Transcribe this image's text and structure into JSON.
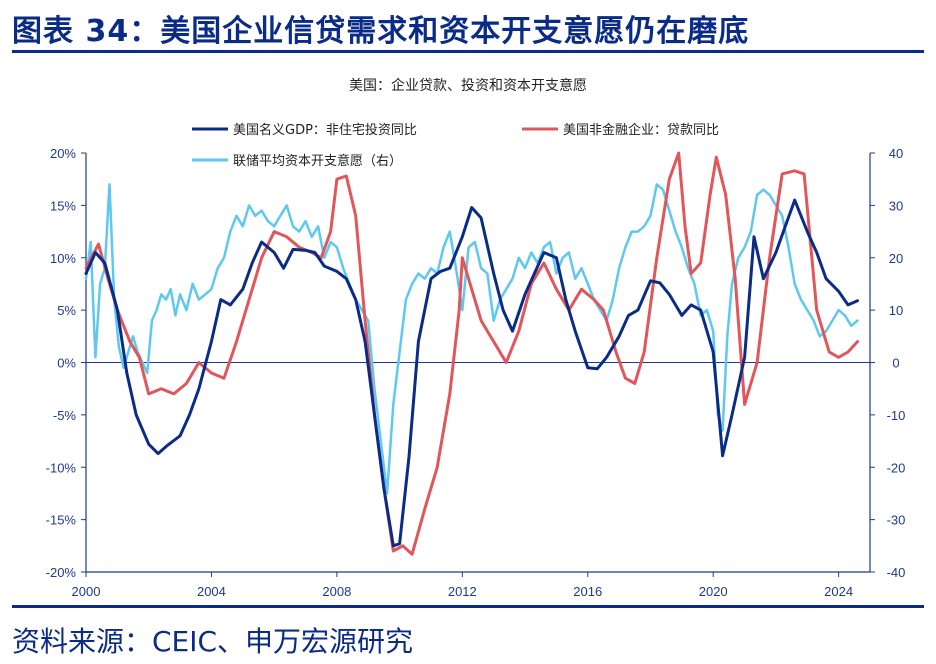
{
  "figure": {
    "title": "图表 34：美国企业信贷需求和资本开支意愿仍在磨底",
    "source": "资料来源：CEIC、申万宏源研究"
  },
  "colors": {
    "title": "#0b2c86",
    "axis": "#1f3a8a",
    "series_gdp": "#0b2c86",
    "series_loan": "#e0565b",
    "series_capex": "#5fc8ee"
  },
  "chart_data": {
    "type": "line",
    "title": "美国：企业贷款、投资和资本开支意愿",
    "xlim": [
      2000,
      2025
    ],
    "ylim_left": [
      -20,
      20
    ],
    "ylim_right": [
      -40,
      40
    ],
    "x_ticks": [
      "2000",
      "2004",
      "2008",
      "2012",
      "2016",
      "2020",
      "2024"
    ],
    "y_left_ticks": [
      "20%",
      "15%",
      "10%",
      "5%",
      "0%",
      "-5%",
      "-10%",
      "-15%",
      "-20%"
    ],
    "y_right_ticks": [
      "40",
      "30",
      "20",
      "10",
      "0",
      "-10",
      "-20",
      "-30",
      "-40"
    ],
    "legend_position": "top",
    "series": [
      {
        "name": "美国名义GDP：非住宅投资同比",
        "axis": "left",
        "x": [
          2000.0,
          2000.3,
          2000.6,
          2001.0,
          2001.3,
          2001.6,
          2002.0,
          2002.3,
          2002.6,
          2003.0,
          2003.3,
          2003.6,
          2004.0,
          2004.3,
          2004.6,
          2005.0,
          2005.3,
          2005.6,
          2006.0,
          2006.3,
          2006.6,
          2007.0,
          2007.3,
          2007.6,
          2008.0,
          2008.3,
          2008.6,
          2008.9,
          2009.2,
          2009.5,
          2009.8,
          2010.0,
          2010.3,
          2010.6,
          2011.0,
          2011.3,
          2011.6,
          2012.0,
          2012.3,
          2012.6,
          2013.0,
          2013.3,
          2013.6,
          2014.0,
          2014.3,
          2014.6,
          2015.0,
          2015.3,
          2015.6,
          2016.0,
          2016.3,
          2016.6,
          2017.0,
          2017.3,
          2017.6,
          2018.0,
          2018.3,
          2018.6,
          2019.0,
          2019.3,
          2019.6,
          2020.0,
          2020.3,
          2020.6,
          2021.0,
          2021.3,
          2021.6,
          2022.0,
          2022.3,
          2022.6,
          2023.0,
          2023.3,
          2023.6,
          2024.0,
          2024.3,
          2024.6
        ],
        "values": [
          8.5,
          10.5,
          9.5,
          5.0,
          -1.0,
          -5.0,
          -7.8,
          -8.7,
          -7.9,
          -7.0,
          -5.0,
          -2.5,
          2.0,
          6.0,
          5.5,
          7.0,
          9.5,
          11.5,
          10.5,
          9.0,
          10.8,
          10.7,
          10.5,
          9.2,
          8.7,
          8.0,
          6.0,
          2.0,
          -5.0,
          -12.0,
          -17.5,
          -17.3,
          -9.0,
          2.0,
          8.0,
          8.7,
          9.0,
          12.0,
          14.8,
          13.8,
          8.5,
          5.0,
          3.0,
          6.5,
          8.5,
          10.5,
          10.0,
          6.0,
          3.0,
          -0.5,
          -0.6,
          0.5,
          2.5,
          4.5,
          5.0,
          7.8,
          7.6,
          6.5,
          4.5,
          5.5,
          5.0,
          1.0,
          -8.9,
          -5.0,
          0.5,
          12.0,
          8.0,
          10.5,
          13.0,
          15.5,
          12.5,
          10.5,
          8.0,
          6.8,
          5.5,
          5.9
        ]
      },
      {
        "name": "美国非金融企业：贷款同比",
        "axis": "left",
        "x": [
          2000.0,
          2000.4,
          2000.7,
          2001.0,
          2001.4,
          2001.7,
          2002.0,
          2002.4,
          2002.8,
          2003.2,
          2003.6,
          2004.0,
          2004.4,
          2004.8,
          2005.2,
          2005.6,
          2006.0,
          2006.4,
          2006.8,
          2007.2,
          2007.5,
          2007.8,
          2008.0,
          2008.3,
          2008.6,
          2008.9,
          2009.2,
          2009.5,
          2009.8,
          2010.1,
          2010.4,
          2010.8,
          2011.2,
          2011.6,
          2011.9,
          2012.0,
          2012.3,
          2012.6,
          2013.0,
          2013.4,
          2013.8,
          2014.2,
          2014.6,
          2015.0,
          2015.4,
          2015.8,
          2016.2,
          2016.5,
          2016.9,
          2017.2,
          2017.5,
          2017.8,
          2018.2,
          2018.6,
          2018.9,
          2019.1,
          2019.3,
          2019.6,
          2019.9,
          2020.1,
          2020.4,
          2020.7,
          2021.0,
          2021.4,
          2021.8,
          2022.2,
          2022.6,
          2022.9,
          2023.3,
          2023.7,
          2024.0,
          2024.3,
          2024.6
        ],
        "values": [
          9.0,
          11.3,
          8.0,
          5.0,
          2.0,
          0.5,
          -3.0,
          -2.5,
          -3.0,
          -2.0,
          0.0,
          -1.0,
          -1.5,
          2.0,
          6.0,
          10.0,
          12.5,
          12.0,
          11.0,
          10.5,
          10.0,
          12.5,
          17.5,
          17.8,
          14.0,
          4.0,
          -5.0,
          -12.0,
          -18.0,
          -17.5,
          -18.3,
          -14.0,
          -10.0,
          -3.0,
          5.0,
          10.0,
          7.0,
          4.0,
          2.0,
          0.0,
          3.0,
          7.5,
          9.5,
          7.0,
          5.0,
          7.0,
          6.0,
          5.0,
          1.0,
          -1.5,
          -2.0,
          1.0,
          10.0,
          17.5,
          20.0,
          13.0,
          8.5,
          9.5,
          16.0,
          19.6,
          16.0,
          8.0,
          -4.0,
          0.0,
          10.0,
          18.0,
          18.3,
          18.0,
          5.0,
          1.0,
          0.5,
          1.0,
          2.0
        ]
      },
      {
        "name": "联储平均资本开支意愿（右）",
        "axis": "right",
        "x": [
          2000.0,
          2000.15,
          2000.3,
          2000.45,
          2000.6,
          2000.75,
          2000.9,
          2001.05,
          2001.2,
          2001.35,
          2001.5,
          2001.65,
          2001.8,
          2001.95,
          2002.1,
          2002.25,
          2002.4,
          2002.55,
          2002.7,
          2002.85,
          2003.0,
          2003.2,
          2003.4,
          2003.6,
          2003.8,
          2004.0,
          2004.2,
          2004.4,
          2004.6,
          2004.8,
          2005.0,
          2005.2,
          2005.4,
          2005.6,
          2005.8,
          2006.0,
          2006.2,
          2006.4,
          2006.6,
          2006.8,
          2007.0,
          2007.2,
          2007.4,
          2007.6,
          2007.8,
          2008.0,
          2008.2,
          2008.4,
          2008.6,
          2008.8,
          2009.0,
          2009.2,
          2009.4,
          2009.6,
          2009.8,
          2010.0,
          2010.2,
          2010.4,
          2010.6,
          2010.8,
          2011.0,
          2011.2,
          2011.4,
          2011.6,
          2011.8,
          2012.0,
          2012.2,
          2012.4,
          2012.6,
          2012.8,
          2013.0,
          2013.2,
          2013.4,
          2013.6,
          2013.8,
          2014.0,
          2014.2,
          2014.4,
          2014.6,
          2014.8,
          2015.0,
          2015.2,
          2015.4,
          2015.6,
          2015.8,
          2016.0,
          2016.2,
          2016.4,
          2016.6,
          2016.8,
          2017.0,
          2017.2,
          2017.4,
          2017.6,
          2017.8,
          2018.0,
          2018.2,
          2018.4,
          2018.6,
          2018.8,
          2019.0,
          2019.2,
          2019.4,
          2019.6,
          2019.8,
          2020.0,
          2020.15,
          2020.3,
          2020.45,
          2020.6,
          2020.8,
          2021.0,
          2021.2,
          2021.4,
          2021.6,
          2021.8,
          2022.0,
          2022.2,
          2022.4,
          2022.6,
          2022.8,
          2023.0,
          2023.2,
          2023.4,
          2023.6,
          2023.8,
          2024.0,
          2024.2,
          2024.4,
          2024.6
        ],
        "values": [
          16,
          23,
          1,
          15,
          18,
          34,
          12,
          3,
          -1,
          2,
          5,
          2,
          0,
          -2,
          8,
          10,
          13,
          12,
          14,
          9,
          13,
          10,
          15,
          12,
          13,
          14,
          18,
          20,
          25,
          28,
          26,
          30,
          28,
          29,
          27,
          26,
          28,
          30,
          26,
          25,
          27,
          24,
          26,
          20,
          23,
          22,
          18,
          15,
          12,
          10,
          8,
          -5,
          -15,
          -25,
          -8,
          2,
          12,
          15,
          17,
          16,
          18,
          17,
          22,
          25,
          18,
          10,
          22,
          23,
          18,
          17,
          8,
          12,
          14,
          16,
          20,
          18,
          21,
          19,
          22,
          23,
          17,
          20,
          21,
          16,
          18,
          15,
          12,
          10,
          8,
          12,
          18,
          22,
          25,
          25,
          26,
          28,
          34,
          33,
          29,
          25,
          22,
          18,
          15,
          9,
          10,
          6,
          -10,
          -13,
          5,
          15,
          20,
          22,
          25,
          32,
          33,
          32,
          30,
          28,
          22,
          15,
          12,
          10,
          8,
          5,
          6,
          8,
          10,
          9,
          7,
          8
        ]
      }
    ]
  }
}
